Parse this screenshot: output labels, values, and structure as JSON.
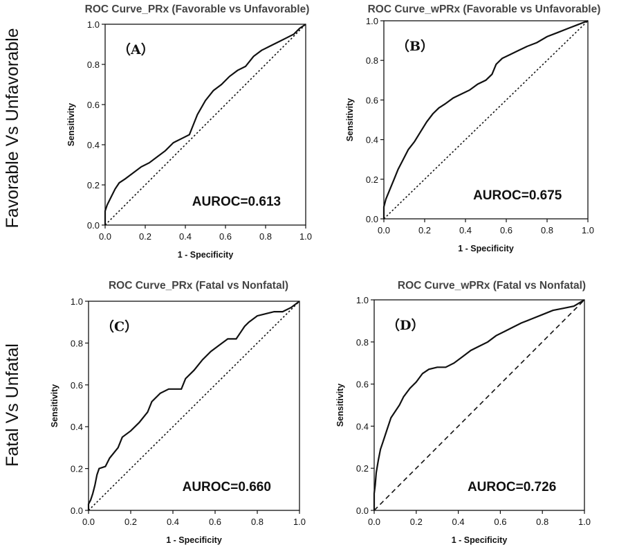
{
  "figure": {
    "row_labels": [
      "Favorable Vs Unfavorable",
      "Fatal Vs Unfatal"
    ]
  },
  "chart_data": [
    {
      "type": "line",
      "title": "ROC Curve_PRx (Favorable vs Unfavorable)",
      "panel_letter": "（A）",
      "annotation": "AUROC=0.613",
      "xlabel": "1 - Specificity",
      "ylabel": "Sensitivity",
      "xlim": [
        0,
        1
      ],
      "ylim": [
        0,
        1
      ],
      "xticks": [
        "0.0",
        "0.2",
        "0.4",
        "0.6",
        "0.8",
        "1.0"
      ],
      "yticks": [
        "0.0",
        "0.2",
        "0.4",
        "0.6",
        "0.8",
        "1.0"
      ],
      "grid": false,
      "reference_line": "dotted",
      "series": [
        {
          "x": [
            0,
            0,
            0.01,
            0.03,
            0.05,
            0.07,
            0.1,
            0.14,
            0.18,
            0.22,
            0.26,
            0.3,
            0.34,
            0.38,
            0.42,
            0.44,
            0.46,
            0.5,
            0.54,
            0.58,
            0.62,
            0.66,
            0.7,
            0.74,
            0.78,
            0.82,
            0.86,
            0.9,
            0.94,
            0.97,
            1.0
          ],
          "y": [
            0,
            0.07,
            0.1,
            0.14,
            0.18,
            0.21,
            0.23,
            0.26,
            0.29,
            0.31,
            0.34,
            0.37,
            0.41,
            0.43,
            0.45,
            0.5,
            0.55,
            0.62,
            0.67,
            0.7,
            0.74,
            0.77,
            0.79,
            0.84,
            0.87,
            0.89,
            0.91,
            0.93,
            0.95,
            0.98,
            1.0
          ]
        }
      ]
    },
    {
      "type": "line",
      "title": "ROC Curve_wPRx (Favorable vs Unfavorable)",
      "panel_letter": "（B）",
      "annotation": "AUROC=0.675",
      "xlabel": "1 - Specificity",
      "ylabel": "Sensitivity",
      "xlim": [
        0,
        1
      ],
      "ylim": [
        0,
        1
      ],
      "xticks": [
        "0.0",
        "0.2",
        "0.4",
        "0.6",
        "0.8",
        "1.0"
      ],
      "yticks": [
        "0.0",
        "0.2",
        "0.4",
        "0.6",
        "0.8",
        "1.0"
      ],
      "grid": false,
      "reference_line": "dotted",
      "series": [
        {
          "x": [
            0,
            0,
            0.01,
            0.03,
            0.05,
            0.07,
            0.09,
            0.12,
            0.15,
            0.18,
            0.21,
            0.24,
            0.27,
            0.3,
            0.34,
            0.38,
            0.42,
            0.46,
            0.5,
            0.53,
            0.55,
            0.58,
            0.62,
            0.66,
            0.7,
            0.75,
            0.8,
            0.85,
            0.9,
            0.95,
            1.0
          ],
          "y": [
            0,
            0.06,
            0.1,
            0.15,
            0.2,
            0.25,
            0.29,
            0.35,
            0.39,
            0.44,
            0.49,
            0.53,
            0.56,
            0.58,
            0.61,
            0.63,
            0.65,
            0.68,
            0.7,
            0.73,
            0.78,
            0.81,
            0.83,
            0.85,
            0.87,
            0.89,
            0.92,
            0.94,
            0.96,
            0.98,
            1.0
          ]
        }
      ]
    },
    {
      "type": "line",
      "title": "ROC Curve_PRx (Fatal vs Nonfatal)",
      "panel_letter": "（C）",
      "annotation": "AUROC=0.660",
      "xlabel": "1 - Specificity",
      "ylabel": "Sensitivity",
      "xlim": [
        0,
        1
      ],
      "ylim": [
        0,
        1
      ],
      "xticks": [
        "0.0",
        "0.2",
        "0.4",
        "0.6",
        "0.8",
        "1.0"
      ],
      "yticks": [
        "0.0",
        "0.2",
        "0.4",
        "0.6",
        "0.8",
        "1.0"
      ],
      "grid": false,
      "reference_line": "dotted",
      "series": [
        {
          "x": [
            0,
            0,
            0.01,
            0.02,
            0.03,
            0.04,
            0.05,
            0.08,
            0.1,
            0.14,
            0.16,
            0.2,
            0.24,
            0.28,
            0.3,
            0.34,
            0.38,
            0.44,
            0.46,
            0.5,
            0.54,
            0.58,
            0.62,
            0.66,
            0.7,
            0.72,
            0.74,
            0.76,
            0.8,
            0.84,
            0.88,
            0.92,
            0.96,
            1.0
          ],
          "y": [
            0,
            0.03,
            0.05,
            0.08,
            0.12,
            0.17,
            0.2,
            0.21,
            0.25,
            0.3,
            0.35,
            0.38,
            0.42,
            0.47,
            0.52,
            0.56,
            0.58,
            0.58,
            0.63,
            0.67,
            0.72,
            0.76,
            0.79,
            0.82,
            0.82,
            0.85,
            0.88,
            0.9,
            0.93,
            0.94,
            0.95,
            0.95,
            0.97,
            1.0
          ]
        }
      ]
    },
    {
      "type": "line",
      "title": "ROC Curve_wPRx (Fatal vs Nonfatal)",
      "panel_letter": "（D）",
      "annotation": "AUROC=0.726",
      "xlabel": "1 - Specificity",
      "ylabel": "Sensitivity",
      "xlim": [
        0,
        1
      ],
      "ylim": [
        0,
        1
      ],
      "xticks": [
        "0.0",
        "0.2",
        "0.4",
        "0.6",
        "0.8",
        "1.0"
      ],
      "yticks": [
        "0.0",
        "0.2",
        "0.4",
        "0.6",
        "0.8",
        "1.0"
      ],
      "grid": false,
      "reference_line": "dashed",
      "series": [
        {
          "x": [
            0,
            0,
            0.005,
            0.01,
            0.02,
            0.03,
            0.04,
            0.05,
            0.06,
            0.08,
            0.1,
            0.12,
            0.14,
            0.17,
            0.2,
            0.23,
            0.26,
            0.3,
            0.34,
            0.38,
            0.42,
            0.46,
            0.5,
            0.54,
            0.58,
            0.62,
            0.66,
            0.7,
            0.75,
            0.8,
            0.85,
            0.9,
            0.95,
            1.0
          ],
          "y": [
            0,
            0.08,
            0.12,
            0.18,
            0.24,
            0.29,
            0.32,
            0.35,
            0.38,
            0.44,
            0.47,
            0.5,
            0.54,
            0.58,
            0.61,
            0.65,
            0.67,
            0.68,
            0.68,
            0.7,
            0.73,
            0.76,
            0.78,
            0.8,
            0.83,
            0.85,
            0.87,
            0.89,
            0.91,
            0.93,
            0.95,
            0.96,
            0.97,
            1.0
          ]
        }
      ]
    }
  ]
}
